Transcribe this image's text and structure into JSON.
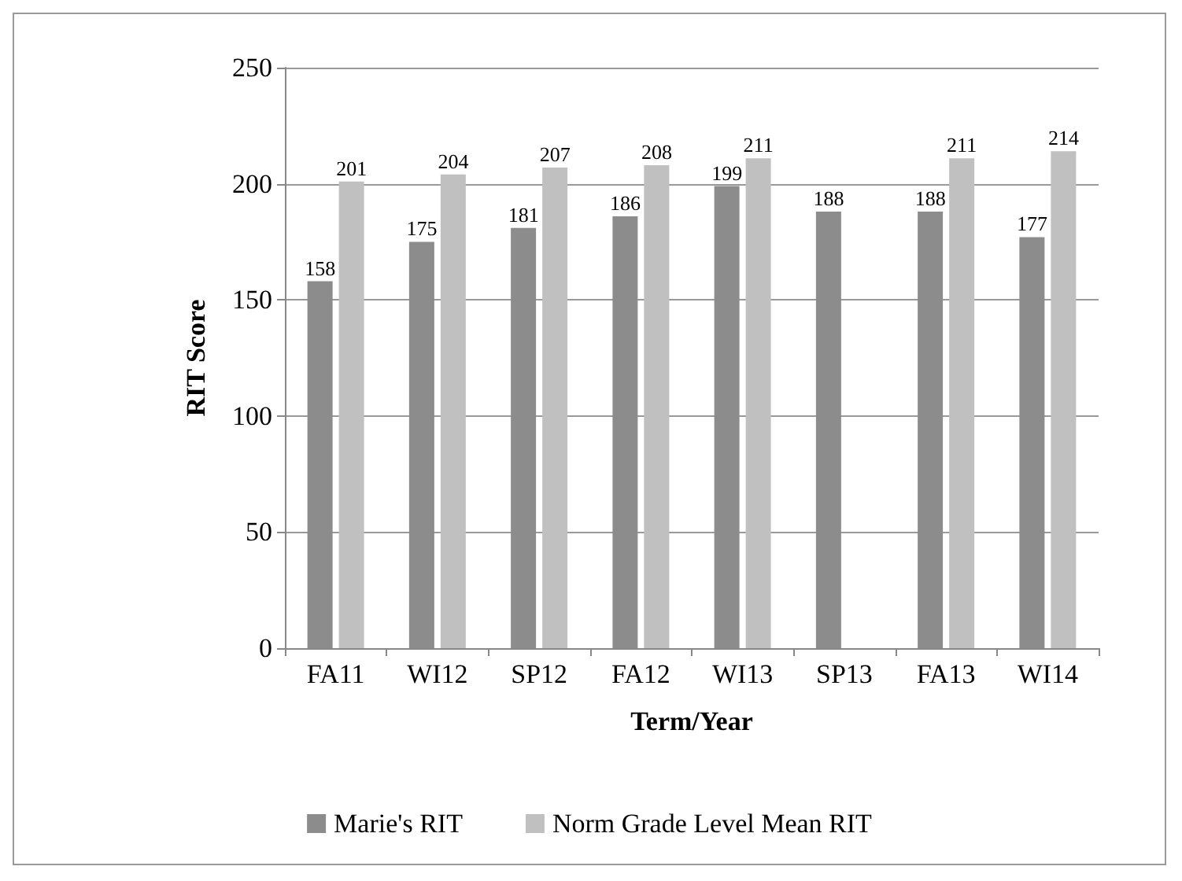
{
  "chart_data": {
    "type": "bar",
    "xlabel": "Term/Year",
    "ylabel": "RIT Score",
    "categories": [
      "FA11",
      "WI12",
      "SP12",
      "FA12",
      "WI13",
      "SP13",
      "FA13",
      "WI14"
    ],
    "series": [
      {
        "name": "Marie's RIT",
        "color": "#8c8c8c",
        "values": [
          158,
          175,
          181,
          186,
          199,
          188,
          188,
          177
        ]
      },
      {
        "name": "Norm Grade Level Mean RIT",
        "color": "#c0c0c0",
        "values": [
          201,
          204,
          207,
          208,
          211,
          null,
          211,
          214
        ]
      }
    ],
    "ylim": [
      0,
      250
    ],
    "yticks": [
      0,
      50,
      100,
      150,
      200,
      250
    ],
    "grid": "y",
    "legend": "bottom",
    "data_labels": true
  }
}
